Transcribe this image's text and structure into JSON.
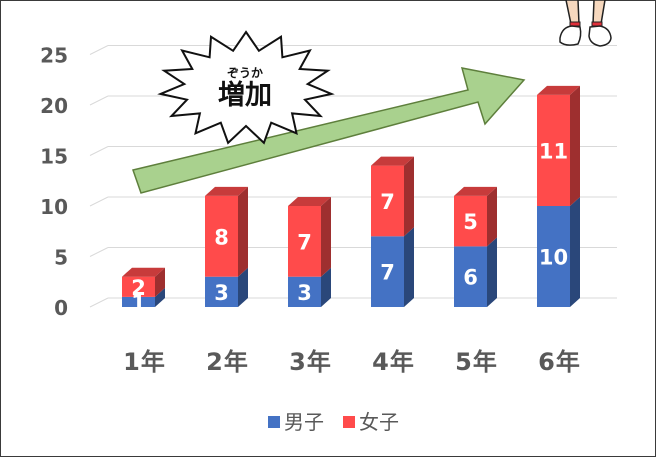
{
  "chart_data": {
    "type": "bar",
    "stacked": true,
    "style": "3d-column",
    "categories": [
      "1年",
      "2年",
      "3年",
      "4年",
      "5年",
      "6年"
    ],
    "series": [
      {
        "name": "男子",
        "values": [
          1,
          3,
          3,
          7,
          6,
          10
        ],
        "color": "#4472C4"
      },
      {
        "name": "女子",
        "values": [
          2,
          8,
          7,
          7,
          5,
          11
        ],
        "color": "#FF4B4B"
      }
    ],
    "yticks": [
      0,
      5,
      10,
      15,
      20,
      25
    ],
    "ylim": [
      0,
      25
    ],
    "grid": true,
    "legend": "bottom-center",
    "annotation": {
      "ruby": "ぞうか",
      "text": "増加",
      "arrow_color": "#A9D18E"
    }
  }
}
